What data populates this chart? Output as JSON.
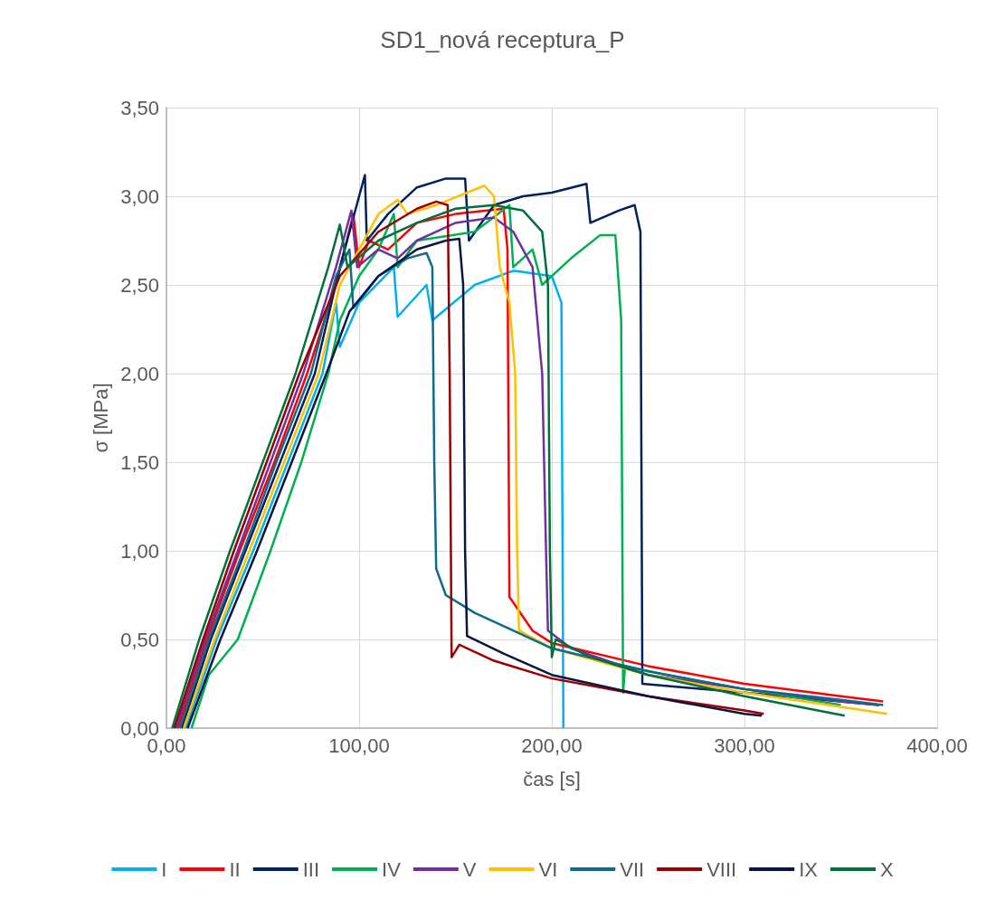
{
  "chart_data": {
    "type": "line",
    "title": "SD1_nová receptura_P",
    "xlabel": "čas [s]",
    "ylabel": "σ [MPa]",
    "xlim": [
      0,
      400
    ],
    "xticks": [
      {
        "value": 0,
        "label": "0,00"
      },
      {
        "value": 100,
        "label": "100,00"
      },
      {
        "value": 200,
        "label": "200,00"
      },
      {
        "value": 300,
        "label": "300,00"
      },
      {
        "value": 400,
        "label": "400,00"
      }
    ],
    "ylim": [
      0,
      3.5
    ],
    "yticks": [
      {
        "value": 0,
        "label": "0,00"
      },
      {
        "value": 0.5,
        "label": "0,50"
      },
      {
        "value": 1,
        "label": "1,00"
      },
      {
        "value": 1.5,
        "label": "1,50"
      },
      {
        "value": 2,
        "label": "2,00"
      },
      {
        "value": 2.5,
        "label": "2,50"
      },
      {
        "value": 3,
        "label": "3,00"
      },
      {
        "value": 3.5,
        "label": "3,50"
      }
    ],
    "grid": true,
    "legend": "bottom",
    "line_style": "solid",
    "series": [
      {
        "name": "I",
        "color": "#00b0f0",
        "x": [
          10,
          26,
          45,
          63,
          81,
          88,
          90,
          100,
          118,
          120,
          135,
          138,
          160,
          180,
          200,
          205,
          206
        ],
        "values": [
          0,
          0.5,
          1.0,
          1.5,
          2.0,
          2.4,
          2.15,
          2.4,
          2.6,
          2.32,
          2.5,
          2.3,
          2.5,
          2.58,
          2.55,
          2.4,
          0
        ]
      },
      {
        "name": "II",
        "color": "#ff0000",
        "x": [
          6,
          21,
          38,
          56,
          73,
          88,
          97,
          100,
          105,
          115,
          130,
          150,
          175,
          177,
          178,
          190,
          200,
          250,
          300,
          350,
          372
        ],
        "values": [
          0,
          0.5,
          1.0,
          1.5,
          2.0,
          2.5,
          2.9,
          2.6,
          2.75,
          2.7,
          2.85,
          2.9,
          2.93,
          2.7,
          0.74,
          0.55,
          0.48,
          0.35,
          0.25,
          0.18,
          0.15
        ]
      },
      {
        "name": "III",
        "color": "#002060",
        "x": [
          8,
          23,
          41,
          59,
          77,
          90,
          103,
          104,
          115,
          130,
          145,
          155,
          157,
          170,
          185,
          200,
          218,
          220,
          235,
          243,
          246,
          247,
          300,
          370
        ],
        "values": [
          0,
          0.5,
          1.0,
          1.5,
          2.0,
          2.6,
          3.12,
          2.75,
          2.9,
          3.05,
          3.1,
          3.1,
          2.75,
          2.95,
          3.0,
          3.02,
          3.07,
          2.85,
          2.92,
          2.95,
          2.8,
          0.25,
          0.2,
          0.13
        ]
      },
      {
        "name": "IV",
        "color": "#00b050",
        "x": [
          13,
          22,
          37,
          54,
          70,
          84,
          90,
          100,
          110,
          118,
          120,
          130,
          160,
          178,
          180,
          190,
          195,
          210,
          225,
          233,
          236,
          237,
          238,
          260,
          300,
          350
        ],
        "values": [
          0,
          0.3,
          0.5,
          1.0,
          1.5,
          2.0,
          2.3,
          2.55,
          2.7,
          2.9,
          2.6,
          2.75,
          2.8,
          2.95,
          2.6,
          2.7,
          2.5,
          2.65,
          2.78,
          2.78,
          2.3,
          0.2,
          0.35,
          0.3,
          0.22,
          0.13
        ]
      },
      {
        "name": "V",
        "color": "#7030a0",
        "x": [
          5,
          20,
          37,
          54,
          71,
          88,
          96,
          99,
          110,
          120,
          130,
          150,
          170,
          180,
          190,
          195,
          197,
          198,
          210,
          250,
          300,
          350,
          370
        ],
        "values": [
          0,
          0.5,
          1.0,
          1.5,
          2.0,
          2.6,
          2.92,
          2.6,
          2.7,
          2.65,
          2.75,
          2.85,
          2.88,
          2.8,
          2.6,
          2.0,
          1.0,
          0.55,
          0.45,
          0.3,
          0.22,
          0.15,
          0.13
        ]
      },
      {
        "name": "VI",
        "color": "#ffc000",
        "x": [
          9,
          25,
          43,
          61,
          79,
          90,
          110,
          120,
          125,
          140,
          165,
          170,
          173,
          178,
          181,
          182,
          183,
          200,
          250,
          300,
          350,
          374
        ],
        "values": [
          0,
          0.5,
          1.0,
          1.5,
          2.0,
          2.5,
          2.9,
          2.98,
          2.9,
          2.95,
          3.06,
          3.0,
          2.6,
          2.4,
          2.0,
          1.0,
          0.55,
          0.45,
          0.3,
          0.2,
          0.12,
          0.08
        ]
      },
      {
        "name": "VII",
        "color": "#0e6a8e",
        "x": [
          7,
          22,
          40,
          57,
          75,
          88,
          95,
          97,
          110,
          125,
          135,
          138,
          139,
          140,
          145,
          160,
          180,
          200,
          250,
          300,
          350,
          372
        ],
        "values": [
          0,
          0.5,
          1.0,
          1.5,
          2.0,
          2.55,
          2.7,
          2.37,
          2.55,
          2.65,
          2.68,
          2.6,
          1.5,
          0.9,
          0.75,
          0.65,
          0.55,
          0.45,
          0.32,
          0.22,
          0.16,
          0.13
        ]
      },
      {
        "name": "VIII",
        "color": "#990000",
        "x": [
          4,
          19,
          35,
          52,
          69,
          90,
          110,
          130,
          140,
          146,
          147,
          148,
          152,
          170,
          200,
          250,
          300,
          310
        ],
        "values": [
          0,
          0.5,
          1.0,
          1.5,
          2.0,
          2.55,
          2.8,
          2.93,
          2.97,
          2.95,
          2.0,
          0.4,
          0.47,
          0.38,
          0.28,
          0.18,
          0.1,
          0.08
        ]
      },
      {
        "name": "IX",
        "color": "#0c1445",
        "x": [
          11,
          28,
          47,
          65,
          83,
          95,
          110,
          130,
          145,
          152,
          154,
          155,
          156,
          175,
          200,
          250,
          300,
          309
        ],
        "values": [
          0,
          0.5,
          1.0,
          1.5,
          2.0,
          2.35,
          2.55,
          2.7,
          2.75,
          2.76,
          2.5,
          1.0,
          0.52,
          0.42,
          0.3,
          0.18,
          0.08,
          0.07
        ]
      },
      {
        "name": "X",
        "color": "#00703c",
        "x": [
          3,
          17,
          33,
          50,
          67,
          84,
          90,
          94,
          110,
          130,
          150,
          170,
          185,
          195,
          198,
          199,
          200,
          202,
          220,
          250,
          300,
          352
        ],
        "values": [
          0,
          0.5,
          1.0,
          1.5,
          2.0,
          2.6,
          2.84,
          2.6,
          2.75,
          2.85,
          2.93,
          2.95,
          2.92,
          2.8,
          2.5,
          1.0,
          0.4,
          0.5,
          0.4,
          0.3,
          0.18,
          0.07
        ]
      }
    ]
  }
}
